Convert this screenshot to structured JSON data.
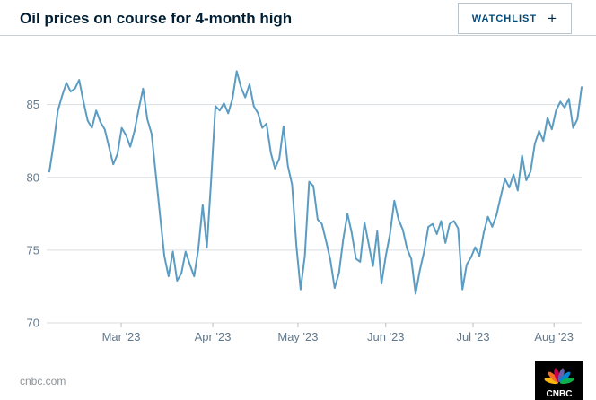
{
  "header": {
    "title": "Oil prices on course for 4-month high",
    "watchlist_label": "WATCHLIST",
    "watchlist_plus": "+"
  },
  "footer": {
    "source": "cnbc.com",
    "logo_text": "CNBC",
    "logo_feather_colors": [
      "#fcb711",
      "#f37021",
      "#cc004c",
      "#6460aa",
      "#0089d0",
      "#0db14b"
    ]
  },
  "chart_data": {
    "type": "line",
    "title": "Oil prices on course for 4-month high",
    "xlabel": "",
    "ylabel": "",
    "ylim": [
      70,
      88
    ],
    "yticks": [
      70,
      75,
      80,
      85
    ],
    "grid": true,
    "line_color": "#5b9cc3",
    "axis_text_color": "#62798c",
    "grid_color": "#dadee1",
    "x_ticks": [
      {
        "label": "Mar '23",
        "pos": 0.135
      },
      {
        "label": "Apr '23",
        "pos": 0.307
      },
      {
        "label": "May '23",
        "pos": 0.467
      },
      {
        "label": "Jun '23",
        "pos": 0.632
      },
      {
        "label": "Jul '23",
        "pos": 0.796
      },
      {
        "label": "Aug '23",
        "pos": 0.948
      }
    ],
    "values": [
      80.4,
      82.3,
      84.6,
      85.6,
      86.5,
      85.9,
      86.1,
      86.7,
      85.2,
      83.9,
      83.4,
      84.6,
      83.8,
      83.3,
      82.1,
      80.9,
      81.6,
      83.4,
      82.9,
      82.1,
      83.2,
      84.7,
      86.1,
      84.0,
      83.0,
      80.2,
      77.4,
      74.6,
      73.2,
      74.9,
      72.9,
      73.4,
      74.9,
      74.0,
      73.2,
      75.1,
      78.1,
      75.2,
      79.9,
      84.9,
      84.6,
      85.1,
      84.4,
      85.4,
      87.3,
      86.2,
      85.5,
      86.4,
      84.9,
      84.4,
      83.4,
      83.7,
      81.7,
      80.6,
      81.3,
      83.5,
      80.8,
      79.5,
      75.3,
      72.3,
      74.6,
      79.7,
      79.4,
      77.1,
      76.8,
      75.6,
      74.3,
      72.4,
      73.4,
      75.7,
      77.5,
      76.2,
      74.4,
      74.2,
      76.9,
      75.4,
      73.9,
      76.3,
      72.7,
      74.6,
      76.1,
      78.4,
      77.1,
      76.4,
      75.1,
      74.4,
      72.0,
      73.6,
      74.9,
      76.6,
      76.8,
      76.1,
      77.0,
      75.5,
      76.8,
      77.0,
      76.5,
      72.3,
      74.0,
      74.5,
      75.2,
      74.6,
      76.2,
      77.3,
      76.6,
      77.4,
      78.7,
      79.9,
      79.3,
      80.2,
      79.1,
      81.5,
      79.8,
      80.4,
      82.3,
      83.2,
      82.5,
      84.1,
      83.3,
      84.6,
      85.2,
      84.8,
      85.4,
      83.4,
      84.0,
      86.2
    ]
  }
}
